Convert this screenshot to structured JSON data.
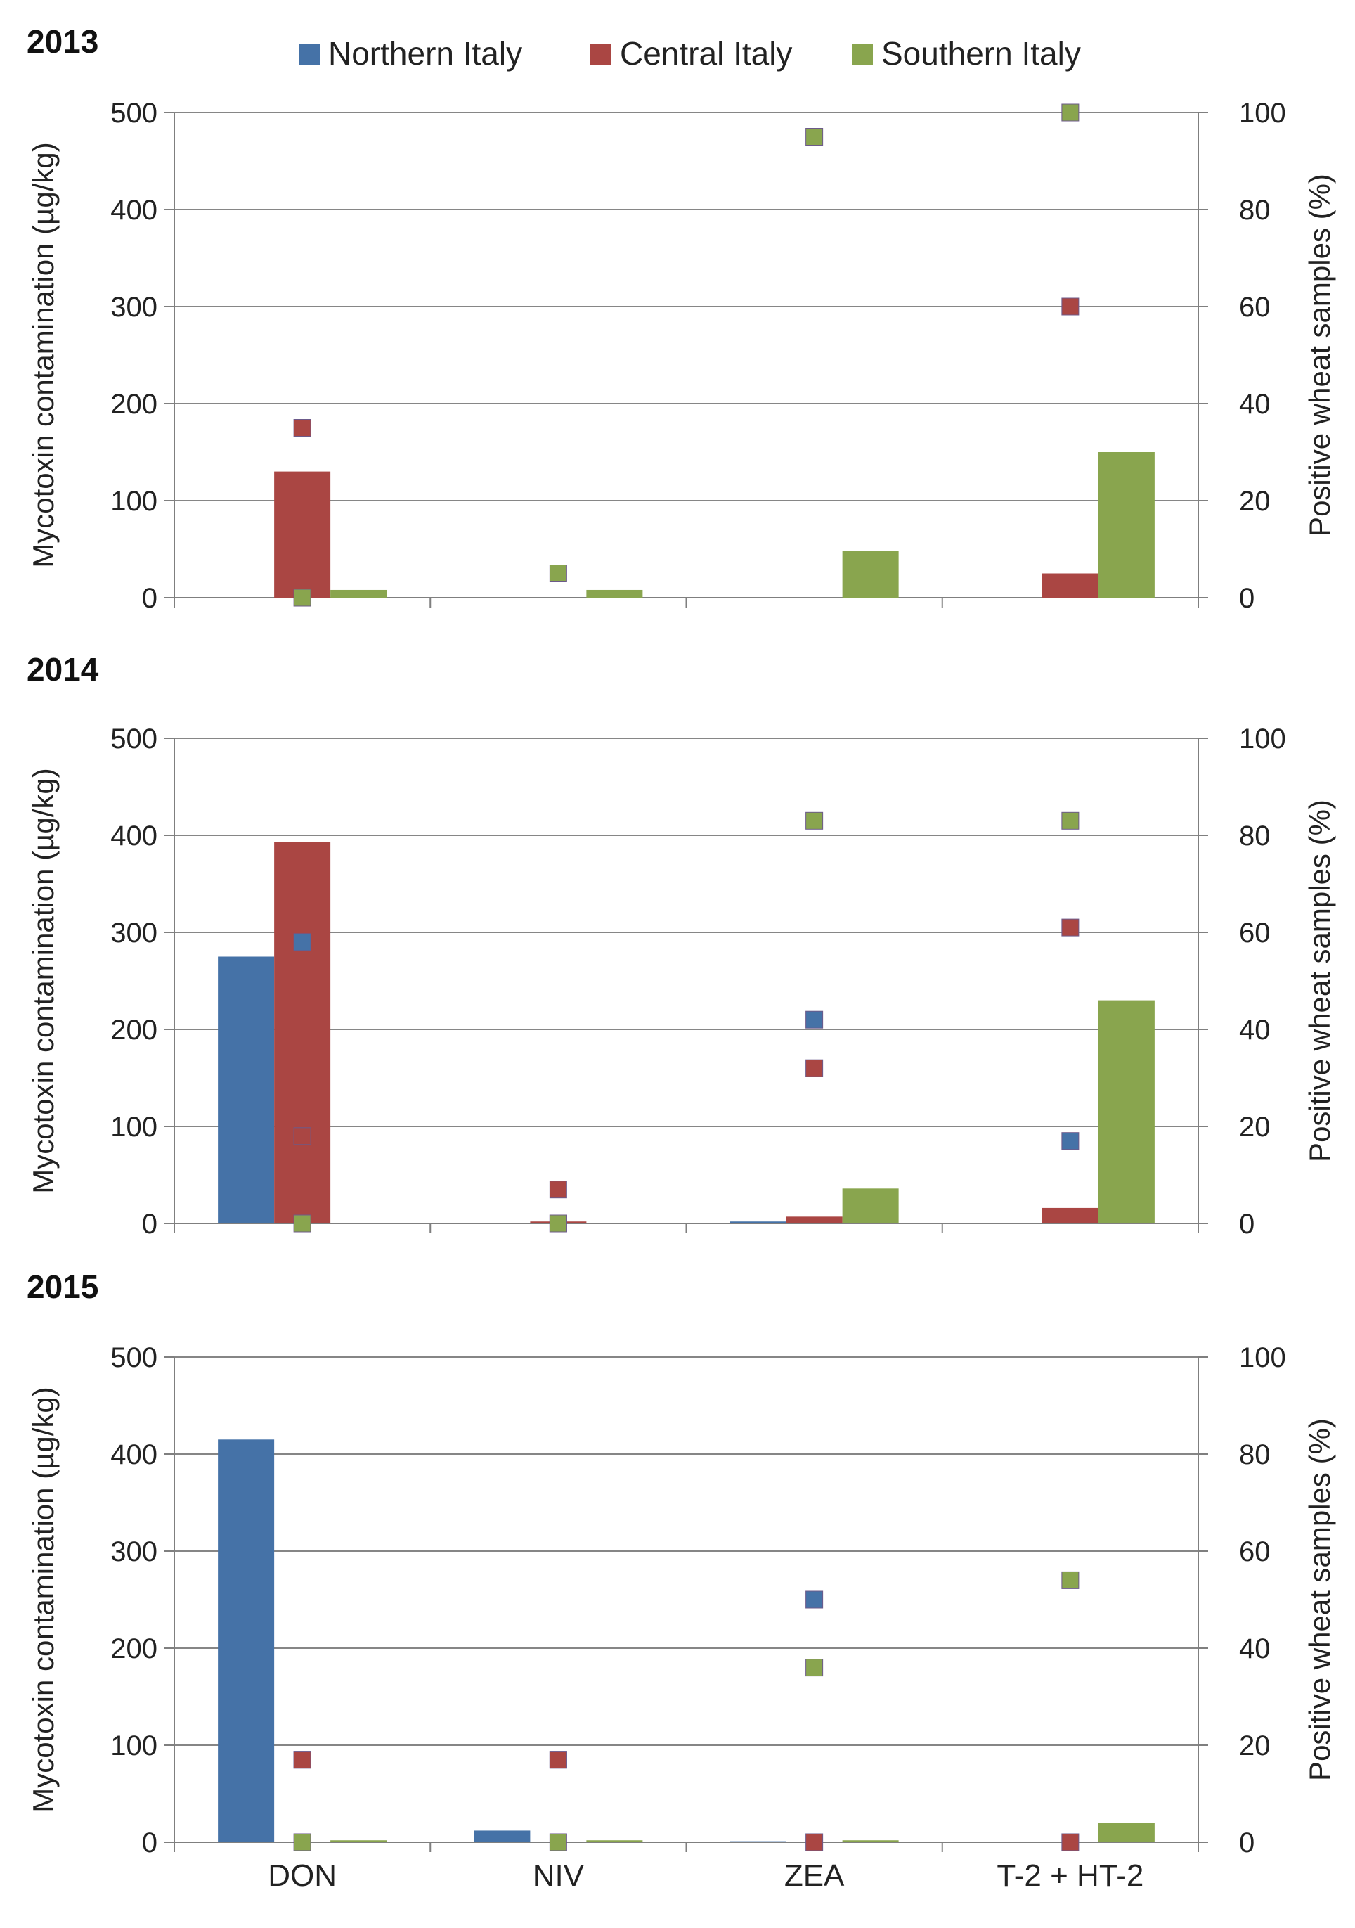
{
  "legend": [
    {
      "name": "Northern Italy",
      "color": "#4572A7"
    },
    {
      "name": "Central Italy",
      "color": "#AA4643"
    },
    {
      "name": "Southern Italy",
      "color": "#89A54E"
    }
  ],
  "chart_data": [
    {
      "type": "bar",
      "title": "2013",
      "categories": [
        "DON",
        "NIV",
        "ZEA",
        "T-2 + HT-2"
      ],
      "ylabel": "Mycotoxin contamination (µg/kg)",
      "y2label": "Positive wheat samples (%)",
      "ylim": [
        0,
        500
      ],
      "y2lim": [
        0,
        100
      ],
      "yticks": [
        "0",
        "100",
        "200",
        "300",
        "400",
        "500"
      ],
      "y2ticks": [
        "0",
        "20",
        "40",
        "60",
        "80",
        "100"
      ],
      "series": [
        {
          "name": "Northern Italy",
          "values": [
            0,
            0,
            0,
            0
          ]
        },
        {
          "name": "Central Italy",
          "values": [
            130,
            0,
            0,
            25
          ]
        },
        {
          "name": "Southern Italy",
          "values": [
            8,
            8,
            48,
            150
          ]
        }
      ],
      "points": [
        {
          "name": "Northern Italy",
          "values": [
            null,
            null,
            null,
            null
          ]
        },
        {
          "name": "Central Italy",
          "values": [
            35,
            null,
            null,
            60
          ]
        },
        {
          "name": "Southern Italy",
          "values": [
            0,
            5,
            95,
            100
          ]
        }
      ]
    },
    {
      "type": "bar",
      "title": "2014",
      "categories": [
        "DON",
        "NIV",
        "ZEA",
        "T-2 + HT-2"
      ],
      "ylabel": "Mycotoxin contamination (µg/kg)",
      "y2label": "Positive wheat samples (%)",
      "ylim": [
        0,
        500
      ],
      "y2lim": [
        0,
        100
      ],
      "yticks": [
        "0",
        "100",
        "200",
        "300",
        "400",
        "500"
      ],
      "y2ticks": [
        "0",
        "20",
        "40",
        "60",
        "80",
        "100"
      ],
      "series": [
        {
          "name": "Northern Italy",
          "values": [
            275,
            0,
            2,
            0
          ]
        },
        {
          "name": "Central Italy",
          "values": [
            393,
            2,
            7,
            16
          ]
        },
        {
          "name": "Southern Italy",
          "values": [
            0,
            0,
            36,
            230
          ]
        }
      ],
      "points": [
        {
          "name": "Northern Italy",
          "values": [
            58,
            0,
            42,
            17
          ]
        },
        {
          "name": "Central Italy",
          "values": [
            18,
            7,
            32,
            61
          ]
        },
        {
          "name": "Southern Italy",
          "values": [
            0,
            0,
            83,
            83
          ]
        }
      ]
    },
    {
      "type": "bar",
      "title": "2015",
      "categories": [
        "DON",
        "NIV",
        "ZEA",
        "T-2 + HT-2"
      ],
      "ylabel": "Mycotoxin contamination (µg/kg)",
      "y2label": "Positive wheat samples (%)",
      "ylim": [
        0,
        500
      ],
      "y2lim": [
        0,
        100
      ],
      "yticks": [
        "0",
        "100",
        "200",
        "300",
        "400",
        "500"
      ],
      "y2ticks": [
        "0",
        "20",
        "40",
        "60",
        "80",
        "100"
      ],
      "series": [
        {
          "name": "Northern Italy",
          "values": [
            415,
            12,
            1,
            0
          ]
        },
        {
          "name": "Central Italy",
          "values": [
            0,
            0,
            0,
            0
          ]
        },
        {
          "name": "Southern Italy",
          "values": [
            2,
            2,
            2,
            20
          ]
        }
      ],
      "points": [
        {
          "name": "Northern Italy",
          "values": [
            17,
            17,
            50,
            null
          ]
        },
        {
          "name": "Central Italy",
          "values": [
            17,
            17,
            0,
            0
          ]
        },
        {
          "name": "Southern Italy",
          "values": [
            0,
            0,
            36,
            54
          ]
        }
      ]
    }
  ]
}
